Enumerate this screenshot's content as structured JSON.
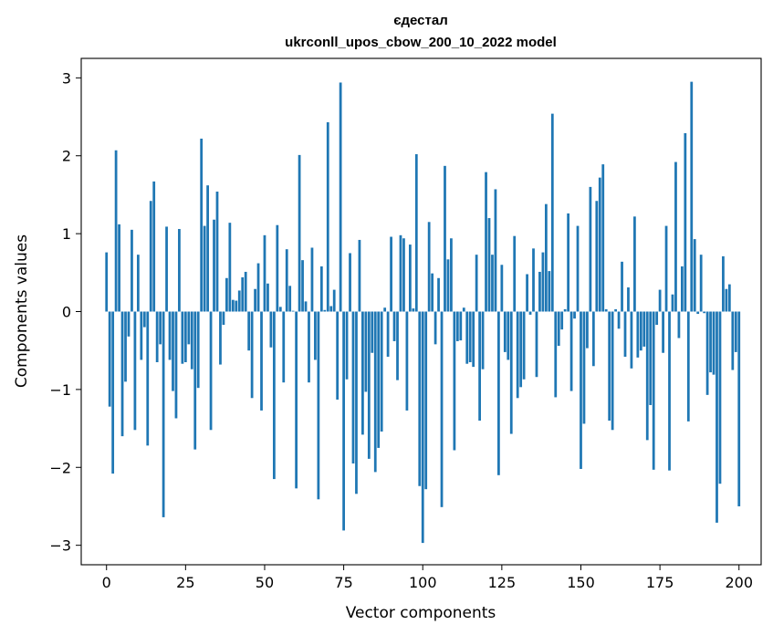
{
  "chart_data": {
    "type": "bar",
    "title_line1": "єдестал",
    "title_line2": "ukrconll_upos_cbow_200_10_2022 model",
    "xlabel": "Vector components",
    "ylabel": "Components values",
    "xlim": [
      -8,
      207
    ],
    "ylim": [
      -3.25,
      3.25
    ],
    "xticks": [
      0,
      25,
      50,
      75,
      100,
      125,
      150,
      175,
      200
    ],
    "yticks": [
      -3,
      -2,
      -1,
      0,
      1,
      2,
      3
    ],
    "ytick_labels": [
      "−3",
      "−2",
      "−1",
      "0",
      "1",
      "2",
      "3"
    ],
    "grid": false,
    "bar_color": "#1f77b4",
    "values": [
      0.76,
      -1.22,
      -2.08,
      2.07,
      1.12,
      -1.6,
      -0.9,
      -0.32,
      1.05,
      -1.52,
      0.73,
      -0.62,
      -0.2,
      -1.72,
      1.42,
      1.67,
      -0.65,
      -0.42,
      -2.64,
      1.09,
      -0.62,
      -1.02,
      -1.37,
      1.06,
      -0.67,
      -0.65,
      -0.42,
      -0.74,
      -1.77,
      -0.98,
      2.22,
      1.1,
      1.62,
      -1.52,
      1.18,
      1.54,
      -0.68,
      -0.17,
      0.43,
      1.14,
      0.15,
      0.14,
      0.27,
      0.44,
      0.51,
      -0.5,
      -1.11,
      0.29,
      0.62,
      -1.27,
      0.98,
      0.36,
      -0.46,
      -2.15,
      1.11,
      0.06,
      -0.91,
      0.8,
      0.33,
      0.01,
      -2.27,
      2.01,
      0.66,
      0.13,
      -0.91,
      0.82,
      -0.62,
      -2.41,
      0.58,
      0.02,
      2.43,
      0.07,
      0.28,
      -1.13,
      2.94,
      -2.81,
      -0.87,
      0.75,
      -1.95,
      -2.34,
      0.92,
      -1.58,
      -1.03,
      -1.89,
      -0.53,
      -2.06,
      -1.75,
      -1.54,
      0.05,
      -0.58,
      0.96,
      -0.38,
      -0.88,
      0.98,
      0.94,
      -1.27,
      0.86,
      0.04,
      2.02,
      -2.24,
      -2.97,
      -2.28,
      1.15,
      0.49,
      -0.42,
      0.43,
      -2.51,
      1.87,
      0.67,
      0.94,
      -1.78,
      -0.38,
      -0.37,
      0.05,
      -0.67,
      -0.65,
      -0.71,
      0.73,
      -1.4,
      -0.74,
      1.79,
      1.2,
      0.73,
      1.57,
      -2.1,
      0.6,
      -0.52,
      -0.62,
      -1.57,
      0.97,
      -1.11,
      -0.97,
      -0.87,
      0.48,
      -0.04,
      0.81,
      -0.84,
      0.51,
      0.76,
      1.38,
      0.52,
      2.54,
      -1.1,
      -0.44,
      -0.23,
      0.03,
      1.26,
      -1.02,
      -0.09,
      1.1,
      -2.02,
      -1.44,
      -0.47,
      1.6,
      -0.7,
      1.42,
      1.72,
      1.89,
      0.03,
      -1.4,
      -1.52,
      0.03,
      -0.22,
      0.64,
      -0.58,
      0.31,
      -0.73,
      1.22,
      -0.59,
      -0.5,
      -0.45,
      -1.65,
      -1.2,
      -2.03,
      -0.17,
      0.28,
      -0.53,
      1.1,
      -2.04,
      0.22,
      1.92,
      -0.34,
      0.58,
      2.29,
      -1.41,
      2.95,
      0.93,
      -0.03,
      0.73,
      -0.02,
      -1.07,
      -0.78,
      -0.81,
      -2.71,
      -2.21,
      0.71,
      0.29,
      0.35,
      -0.75,
      -0.52,
      -2.5
    ]
  }
}
